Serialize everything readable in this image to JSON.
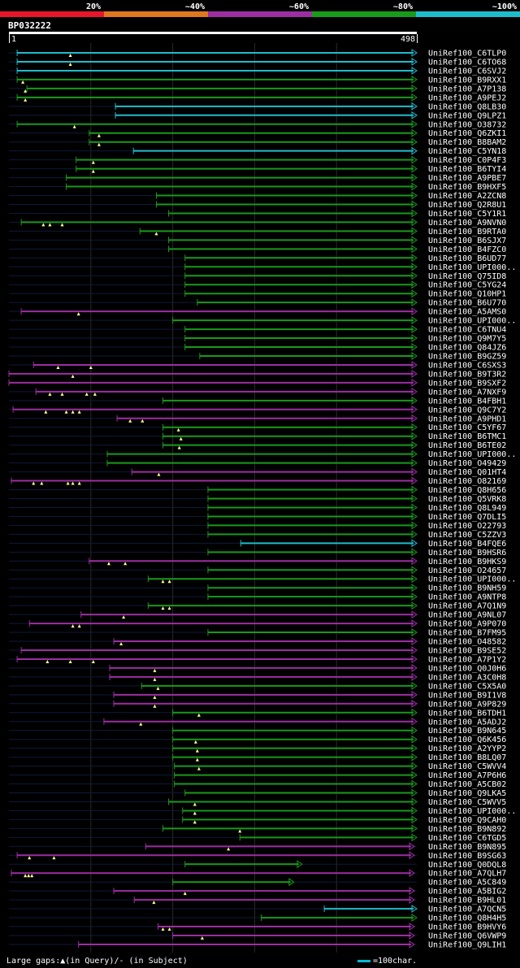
{
  "chart_data": {
    "type": "alignment_overview",
    "title": "BP032222",
    "query_start_label": "1",
    "query_end_label": "498",
    "query_length": 498,
    "identity_legend": [
      {
        "label": "20%",
        "color": "#e8162c"
      },
      {
        "label": "~40%",
        "color": "#e07820"
      },
      {
        "label": "~60%",
        "color": "#9c2ea2"
      },
      {
        "label": "~80%",
        "color": "#189a1a"
      },
      {
        "label": "~100%",
        "color": "#1fbccc"
      }
    ],
    "footer_text": "Large gaps:▲(in Query)/- (in Subject)",
    "scale_text": "=100char.",
    "hits": [
      {
        "name": "UniRef100_C6TLP0",
        "start": 10,
        "end": 498,
        "color": "cyan",
        "gaps": [
          75
        ]
      },
      {
        "name": "UniRef100_C6TO68",
        "start": 10,
        "end": 498,
        "color": "cyan",
        "gaps": [
          75
        ]
      },
      {
        "name": "UniRef100_C6SVJ2",
        "start": 10,
        "end": 498,
        "color": "cyan",
        "gaps": []
      },
      {
        "name": "UniRef100_B9RXX1",
        "start": 10,
        "end": 498,
        "color": "green",
        "gaps": [
          17
        ]
      },
      {
        "name": "UniRef100_A7P138",
        "start": 22,
        "end": 498,
        "color": "green",
        "gaps": [
          20
        ]
      },
      {
        "name": "UniRef100_A9PEJ2",
        "start": 10,
        "end": 498,
        "color": "green",
        "gaps": [
          20
        ]
      },
      {
        "name": "UniRef100_Q8LB30",
        "start": 130,
        "end": 498,
        "color": "cyan",
        "gaps": []
      },
      {
        "name": "UniRef100_Q9LPZ1",
        "start": 130,
        "end": 498,
        "color": "cyan",
        "gaps": []
      },
      {
        "name": "UniRef100_O38732",
        "start": 10,
        "end": 498,
        "color": "green",
        "gaps": [
          80
        ]
      },
      {
        "name": "UniRef100_Q6ZKI1",
        "start": 98,
        "end": 498,
        "color": "green",
        "gaps": [
          110
        ]
      },
      {
        "name": "UniRef100_B8BAM2",
        "start": 98,
        "end": 498,
        "color": "green",
        "gaps": [
          110
        ]
      },
      {
        "name": "UniRef100_C5YN18",
        "start": 152,
        "end": 498,
        "color": "cyan",
        "gaps": []
      },
      {
        "name": "UniRef100_C0P4F3",
        "start": 82,
        "end": 498,
        "color": "green",
        "gaps": [
          103
        ]
      },
      {
        "name": "UniRef100_B6TYI4",
        "start": 82,
        "end": 498,
        "color": "green",
        "gaps": [
          103
        ]
      },
      {
        "name": "UniRef100_A9PBE7",
        "start": 70,
        "end": 498,
        "color": "green",
        "gaps": []
      },
      {
        "name": "UniRef100_B9HXF5",
        "start": 70,
        "end": 498,
        "color": "green",
        "gaps": []
      },
      {
        "name": "UniRef100_A2ZCN8",
        "start": 180,
        "end": 498,
        "color": "green",
        "gaps": []
      },
      {
        "name": "UniRef100_Q2R8U1",
        "start": 180,
        "end": 498,
        "color": "green",
        "gaps": []
      },
      {
        "name": "UniRef100_C5Y1R1",
        "start": 195,
        "end": 498,
        "color": "green",
        "gaps": []
      },
      {
        "name": "UniRef100_A9NVN0",
        "start": 15,
        "end": 498,
        "color": "green",
        "gaps": [
          42,
          50,
          65
        ]
      },
      {
        "name": "UniRef100_B9RTA0",
        "start": 160,
        "end": 498,
        "color": "green",
        "gaps": [
          180
        ]
      },
      {
        "name": "UniRef100_B6SJX7",
        "start": 195,
        "end": 498,
        "color": "green",
        "gaps": []
      },
      {
        "name": "UniRef100_B4FZC0",
        "start": 195,
        "end": 498,
        "color": "green",
        "gaps": []
      },
      {
        "name": "UniRef100_B6UD77",
        "start": 215,
        "end": 498,
        "color": "green",
        "gaps": []
      },
      {
        "name": "UniRef100_UPI000..",
        "start": 215,
        "end": 498,
        "color": "green",
        "gaps": []
      },
      {
        "name": "UniRef100_Q75ID8",
        "start": 215,
        "end": 498,
        "color": "green",
        "gaps": []
      },
      {
        "name": "UniRef100_C5YG24",
        "start": 215,
        "end": 498,
        "color": "green",
        "gaps": []
      },
      {
        "name": "UniRef100_Q10HP1",
        "start": 215,
        "end": 498,
        "color": "green",
        "gaps": []
      },
      {
        "name": "UniRef100_B6U770",
        "start": 230,
        "end": 498,
        "color": "green",
        "gaps": []
      },
      {
        "name": "UniRef100_A5AMS0",
        "start": 15,
        "end": 498,
        "color": "purple",
        "gaps": [
          85
        ]
      },
      {
        "name": "UniRef100_UPI000..",
        "start": 200,
        "end": 498,
        "color": "green",
        "gaps": []
      },
      {
        "name": "UniRef100_C6TNU4",
        "start": 215,
        "end": 498,
        "color": "green",
        "gaps": []
      },
      {
        "name": "UniRef100_Q9M7Y5",
        "start": 215,
        "end": 498,
        "color": "green",
        "gaps": []
      },
      {
        "name": "UniRef100_Q84JZ6",
        "start": 215,
        "end": 498,
        "color": "green",
        "gaps": []
      },
      {
        "name": "UniRef100_B9GZ59",
        "start": 233,
        "end": 498,
        "color": "green",
        "gaps": []
      },
      {
        "name": "UniRef100_C6SXS3",
        "start": 30,
        "end": 498,
        "color": "purple",
        "gaps": [
          60,
          100
        ]
      },
      {
        "name": "UniRef100_B9T3R2",
        "start": 0,
        "end": 498,
        "color": "purple",
        "gaps": [
          78
        ]
      },
      {
        "name": "UniRef100_B9SXF2",
        "start": 0,
        "end": 498,
        "color": "purple",
        "gaps": []
      },
      {
        "name": "UniRef100_A7NXF9",
        "start": 33,
        "end": 498,
        "color": "purple",
        "gaps": [
          50,
          65,
          95,
          105
        ]
      },
      {
        "name": "UniRef100_B4FBH1",
        "start": 188,
        "end": 498,
        "color": "green",
        "gaps": []
      },
      {
        "name": "UniRef100_Q9C7Y2",
        "start": 5,
        "end": 498,
        "color": "purple",
        "gaps": [
          45,
          70,
          78,
          86
        ]
      },
      {
        "name": "UniRef100_A9PHD1",
        "start": 132,
        "end": 498,
        "color": "purple",
        "gaps": [
          148,
          163
        ]
      },
      {
        "name": "UniRef100_C5YF67",
        "start": 188,
        "end": 498,
        "color": "green",
        "gaps": [
          207
        ]
      },
      {
        "name": "UniRef100_B6TMC1",
        "start": 188,
        "end": 498,
        "color": "green",
        "gaps": [
          210
        ]
      },
      {
        "name": "UniRef100_B6TE02",
        "start": 188,
        "end": 498,
        "color": "green",
        "gaps": [
          208
        ]
      },
      {
        "name": "UniRef100_UPI000..",
        "start": 120,
        "end": 498,
        "color": "green",
        "gaps": []
      },
      {
        "name": "UniRef100_O49429",
        "start": 120,
        "end": 498,
        "color": "green",
        "gaps": []
      },
      {
        "name": "UniRef100_Q01HT4",
        "start": 150,
        "end": 498,
        "color": "purple",
        "gaps": [
          183
        ]
      },
      {
        "name": "UniRef100_O82169",
        "start": 3,
        "end": 498,
        "color": "purple",
        "gaps": [
          30,
          40,
          72,
          78,
          86
        ]
      },
      {
        "name": "UniRef100_Q8H656",
        "start": 243,
        "end": 498,
        "color": "green",
        "gaps": []
      },
      {
        "name": "UniRef100_Q5VRK8",
        "start": 243,
        "end": 498,
        "color": "green",
        "gaps": []
      },
      {
        "name": "UniRef100_Q8L949",
        "start": 243,
        "end": 498,
        "color": "green",
        "gaps": []
      },
      {
        "name": "UniRef100_Q7DLI5",
        "start": 243,
        "end": 498,
        "color": "green",
        "gaps": []
      },
      {
        "name": "UniRef100_O22793",
        "start": 243,
        "end": 498,
        "color": "green",
        "gaps": []
      },
      {
        "name": "UniRef100_C5ZZV3",
        "start": 243,
        "end": 498,
        "color": "green",
        "gaps": []
      },
      {
        "name": "UniRef100_B4FQE6",
        "start": 283,
        "end": 498,
        "color": "cyan",
        "gaps": []
      },
      {
        "name": "UniRef100_B9HSR6",
        "start": 243,
        "end": 498,
        "color": "green",
        "gaps": []
      },
      {
        "name": "UniRef100_B9HKS9",
        "start": 98,
        "end": 498,
        "color": "purple",
        "gaps": [
          122,
          142
        ]
      },
      {
        "name": "UniRef100_O24657",
        "start": 243,
        "end": 498,
        "color": "green",
        "gaps": []
      },
      {
        "name": "UniRef100_UPI000..",
        "start": 170,
        "end": 498,
        "color": "green",
        "gaps": [
          188,
          196
        ]
      },
      {
        "name": "UniRef100_B9NH59",
        "start": 243,
        "end": 498,
        "color": "green",
        "gaps": []
      },
      {
        "name": "UniRef100_A9NTP8",
        "start": 243,
        "end": 498,
        "color": "green",
        "gaps": []
      },
      {
        "name": "UniRef100_A7Q1N9",
        "start": 170,
        "end": 498,
        "color": "green",
        "gaps": [
          188,
          196
        ]
      },
      {
        "name": "UniRef100_A9NL07",
        "start": 88,
        "end": 498,
        "color": "purple",
        "gaps": [
          140
        ]
      },
      {
        "name": "UniRef100_A9P070",
        "start": 25,
        "end": 498,
        "color": "purple",
        "gaps": [
          78,
          86
        ]
      },
      {
        "name": "UniRef100_B7FM95",
        "start": 243,
        "end": 498,
        "color": "green",
        "gaps": []
      },
      {
        "name": "UniRef100_O48582",
        "start": 128,
        "end": 498,
        "color": "purple",
        "gaps": [
          137
        ]
      },
      {
        "name": "UniRef100_B9SE52",
        "start": 15,
        "end": 498,
        "color": "purple",
        "gaps": []
      },
      {
        "name": "UniRef100_A7P1Y2",
        "start": 10,
        "end": 498,
        "color": "purple",
        "gaps": [
          47,
          75,
          103
        ]
      },
      {
        "name": "UniRef100_Q0J0H6",
        "start": 123,
        "end": 498,
        "color": "purple",
        "gaps": [
          178
        ]
      },
      {
        "name": "UniRef100_A3C0H8",
        "start": 123,
        "end": 498,
        "color": "purple",
        "gaps": [
          178
        ]
      },
      {
        "name": "UniRef100_C5X5A0",
        "start": 162,
        "end": 498,
        "color": "green",
        "gaps": [
          182
        ]
      },
      {
        "name": "UniRef100_B9I1V8",
        "start": 128,
        "end": 498,
        "color": "purple",
        "gaps": [
          178
        ]
      },
      {
        "name": "UniRef100_A9P829",
        "start": 128,
        "end": 498,
        "color": "purple",
        "gaps": [
          178
        ]
      },
      {
        "name": "UniRef100_B6TDH1",
        "start": 200,
        "end": 498,
        "color": "green",
        "gaps": [
          232
        ]
      },
      {
        "name": "UniRef100_A5ADJ2",
        "start": 116,
        "end": 498,
        "color": "purple",
        "gaps": [
          161
        ]
      },
      {
        "name": "UniRef100_B9N645",
        "start": 200,
        "end": 498,
        "color": "green",
        "gaps": []
      },
      {
        "name": "UniRef100_Q6K456",
        "start": 200,
        "end": 498,
        "color": "green",
        "gaps": [
          228
        ]
      },
      {
        "name": "UniRef100_A2YYP2",
        "start": 200,
        "end": 498,
        "color": "green",
        "gaps": [
          230
        ]
      },
      {
        "name": "UniRef100_B8LQ07",
        "start": 200,
        "end": 498,
        "color": "green",
        "gaps": [
          230
        ]
      },
      {
        "name": "UniRef100_C5WVV4",
        "start": 202,
        "end": 498,
        "color": "green",
        "gaps": [
          232
        ]
      },
      {
        "name": "UniRef100_A7P6H6",
        "start": 202,
        "end": 498,
        "color": "green",
        "gaps": []
      },
      {
        "name": "UniRef100_A5CB02",
        "start": 202,
        "end": 498,
        "color": "green",
        "gaps": []
      },
      {
        "name": "UniRef100_Q9LKA5",
        "start": 215,
        "end": 498,
        "color": "green",
        "gaps": []
      },
      {
        "name": "UniRef100_C5WVV5",
        "start": 195,
        "end": 498,
        "color": "green",
        "gaps": [
          227
        ]
      },
      {
        "name": "UniRef100_UPI000..",
        "start": 212,
        "end": 498,
        "color": "green",
        "gaps": [
          227
        ]
      },
      {
        "name": "UniRef100_Q9CAH0",
        "start": 212,
        "end": 498,
        "color": "green",
        "gaps": [
          227
        ]
      },
      {
        "name": "UniRef100_B9N892",
        "start": 188,
        "end": 498,
        "color": "green",
        "gaps": [
          282
        ]
      },
      {
        "name": "UniRef100_C6TGD5",
        "start": 282,
        "end": 498,
        "color": "green",
        "gaps": []
      },
      {
        "name": "UniRef100_B9N895",
        "start": 167,
        "end": 495,
        "color": "purple",
        "gaps": [
          268
        ]
      },
      {
        "name": "UniRef100_B9SG63",
        "start": 10,
        "end": 495,
        "color": "purple",
        "gaps": [
          25,
          55
        ]
      },
      {
        "name": "UniRef100_Q0DQL8",
        "start": 215,
        "end": 358,
        "color": "green",
        "gaps": []
      },
      {
        "name": "UniRef100_A7QLH7",
        "start": 3,
        "end": 495,
        "color": "purple",
        "gaps": [
          20,
          24,
          28
        ]
      },
      {
        "name": "UniRef100_A5C849",
        "start": 200,
        "end": 348,
        "color": "green",
        "gaps": []
      },
      {
        "name": "UniRef100_A5BIG2",
        "start": 128,
        "end": 495,
        "color": "purple",
        "gaps": [
          215
        ]
      },
      {
        "name": "UniRef100_B9HL01",
        "start": 153,
        "end": 495,
        "color": "purple",
        "gaps": [
          177
        ]
      },
      {
        "name": "UniRef100_A7QCN5",
        "start": 385,
        "end": 498,
        "color": "cyan",
        "gaps": []
      },
      {
        "name": "UniRef100_Q8H4H5",
        "start": 308,
        "end": 498,
        "color": "green",
        "gaps": []
      },
      {
        "name": "UniRef100_B9HVY6",
        "start": 182,
        "end": 495,
        "color": "purple",
        "gaps": [
          188,
          196
        ]
      },
      {
        "name": "UniRef100_Q6VWP9",
        "start": 200,
        "end": 495,
        "color": "purple",
        "gaps": [
          236
        ]
      },
      {
        "name": "UniRef100_Q9LIH1",
        "start": 85,
        "end": 495,
        "color": "purple",
        "gaps": []
      }
    ]
  }
}
